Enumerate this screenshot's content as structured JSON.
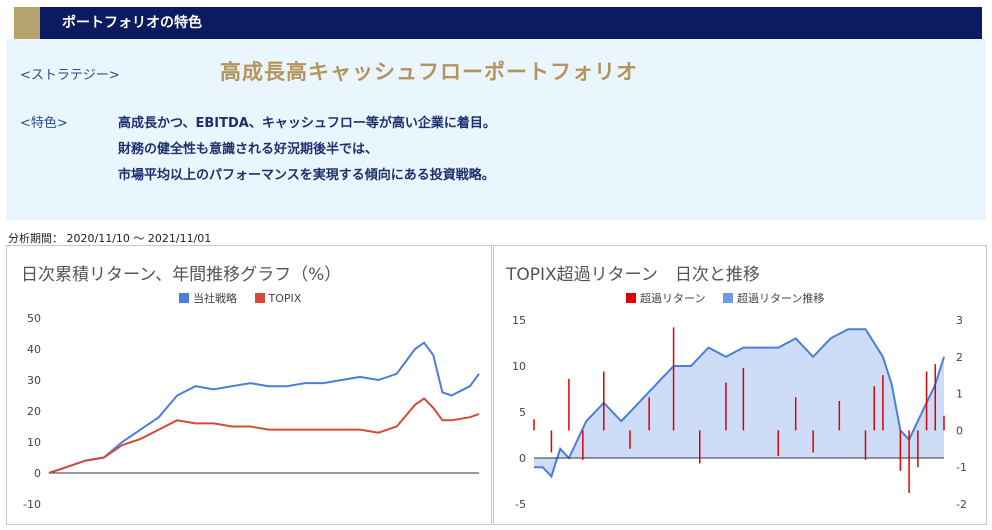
{
  "header": {
    "title": "ポートフォリオの特色"
  },
  "strategy": {
    "label": "<ストラテジー>",
    "name": "高成長高キャッシュフローポートフォリオ"
  },
  "features": {
    "label": "<特色>",
    "lines": [
      "高成長かつ、EBITDA、キャッシュフロー等が高い企業に着目。",
      "財務の健全性も意識される好況期後半では、",
      "市場平均以上のパフォーマンスを実現する傾向にある投資戦略。"
    ]
  },
  "period": "分析期間： 2020/11/10 ～ 2021/11/01",
  "colors": {
    "strategy": "#4a7fd8",
    "topix": "#d64a3a",
    "excess_bar": "#e00000",
    "excess_area": "#6f9ae8"
  },
  "chart_data": [
    {
      "type": "line",
      "title": "日次累積リターン、年間推移グラフ（%）",
      "legend_position": "top",
      "ylim": [
        -10,
        50
      ],
      "yticks": [
        -10,
        0,
        10,
        20,
        30,
        40,
        50
      ],
      "grid": false,
      "x_index": [
        0,
        5,
        10,
        20,
        30,
        40,
        50,
        60,
        70,
        80,
        90,
        100,
        110,
        120,
        130,
        140,
        150,
        160,
        170,
        180,
        190,
        200,
        205,
        210,
        215,
        220,
        230,
        235
      ],
      "series": [
        {
          "name": "当社戦略",
          "values": [
            0,
            1,
            2,
            4,
            5,
            10,
            14,
            18,
            25,
            28,
            27,
            28,
            29,
            28,
            28,
            29,
            29,
            30,
            31,
            30,
            32,
            40,
            42,
            38,
            26,
            25,
            28,
            32
          ]
        },
        {
          "name": "TOPIX",
          "values": [
            0,
            1,
            2,
            4,
            5,
            9,
            11,
            14,
            17,
            16,
            16,
            15,
            15,
            14,
            14,
            14,
            14,
            14,
            14,
            13,
            15,
            22,
            24,
            21,
            17,
            17,
            18,
            19
          ]
        }
      ]
    },
    {
      "type": "bar",
      "title": "TOPIX超過リターン　日次と推移",
      "legend_position": "top",
      "ylim_left": [
        -5,
        15
      ],
      "yticks_left": [
        -5,
        0,
        5,
        10,
        15
      ],
      "ylim_right": [
        -2,
        3
      ],
      "yticks_right": [
        -2,
        -1,
        0,
        1,
        2,
        3
      ],
      "series": [
        {
          "name": "超過リターン",
          "axis": "right",
          "x_index": [
            0,
            10,
            20,
            28,
            40,
            55,
            66,
            80,
            95,
            110,
            120,
            140,
            150,
            160,
            175,
            190,
            195,
            200,
            210,
            215,
            220,
            225,
            230,
            235
          ],
          "values": [
            0.3,
            -0.6,
            1.4,
            -0.8,
            1.6,
            -0.5,
            0.9,
            2.8,
            -0.9,
            1.3,
            1.7,
            -0.7,
            0.9,
            -0.6,
            0.8,
            -0.8,
            1.2,
            1.5,
            -1.1,
            -1.7,
            -1.0,
            1.6,
            1.8,
            0.4
          ]
        },
        {
          "name": "超過リターン推移",
          "axis": "left",
          "x_index": [
            0,
            5,
            10,
            15,
            20,
            30,
            40,
            50,
            60,
            70,
            80,
            90,
            100,
            110,
            120,
            130,
            140,
            150,
            160,
            170,
            180,
            190,
            200,
            205,
            210,
            215,
            220,
            230,
            235
          ],
          "values": [
            -1,
            -1,
            -2,
            1,
            0,
            4,
            6,
            4,
            6,
            8,
            10,
            10,
            12,
            11,
            12,
            12,
            12,
            13,
            11,
            13,
            14,
            14,
            11,
            8,
            3,
            2,
            4,
            8,
            11
          ]
        }
      ]
    }
  ]
}
